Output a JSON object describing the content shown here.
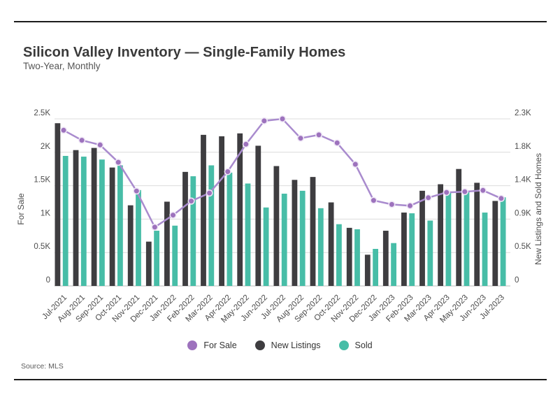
{
  "header": {
    "title": "Silicon Valley Inventory — Single-Family Homes",
    "subtitle": "Two-Year, Monthly"
  },
  "footer": {
    "source": "Source: MLS"
  },
  "legend": [
    {
      "label": "For Sale",
      "color": "#9d72bd"
    },
    {
      "label": "New Listings",
      "color": "#3e3d40"
    },
    {
      "label": "Sold",
      "color": "#47bda7"
    }
  ],
  "colors": {
    "new_listings_bar": "#3e3d40",
    "sold_bar": "#47bda7",
    "for_sale_line": "#a98bce",
    "for_sale_dot": "#9d72bd",
    "dot_ring": "#efe7f6",
    "gridline": "#dcdcdc",
    "baseline": "#bdbdbd",
    "tick_text": "#4d4d4d"
  },
  "chart_data": {
    "type": "bar",
    "subtype": "combo-bar-line-dual-axis",
    "title": "Silicon Valley Inventory — Single-Family Homes",
    "subtitle": "Two-Year, Monthly",
    "grid": true,
    "legend_position": "bottom",
    "categories": [
      "Jul-2021",
      "Aug-2021",
      "Sep-2021",
      "Oct-2021",
      "Nov-2021",
      "Dec-2021",
      "Jan-2022",
      "Feb-2022",
      "Mar-2022",
      "Apr-2022",
      "May-2022",
      "Jun-2022",
      "Jul-2022",
      "Aug-2022",
      "Sep-2022",
      "Oct-2022",
      "Nov-2022",
      "Dec-2022",
      "Jan-2023",
      "Feb-2023",
      "Mar-2023",
      "Apr-2023",
      "May-2023",
      "Jun-2023",
      "Jul-2023"
    ],
    "series": [
      {
        "name": "For Sale",
        "render": "line",
        "axis": "left",
        "values": [
          2330,
          2180,
          2110,
          1850,
          1420,
          880,
          1060,
          1270,
          1390,
          1710,
          2120,
          2470,
          2500,
          2210,
          2260,
          2140,
          1820,
          1280,
          1220,
          1200,
          1320,
          1400,
          1410,
          1430,
          1310
        ]
      },
      {
        "name": "New Listings",
        "render": "bar",
        "axis": "right",
        "values": [
          2240,
          1870,
          1900,
          1630,
          1110,
          610,
          1160,
          1570,
          2080,
          2060,
          2100,
          1930,
          1650,
          1460,
          1500,
          1150,
          800,
          430,
          760,
          1010,
          1310,
          1400,
          1610,
          1420,
          1170
        ]
      },
      {
        "name": "Sold",
        "render": "bar",
        "axis": "right",
        "values": [
          1790,
          1780,
          1740,
          1660,
          1320,
          760,
          830,
          1510,
          1660,
          1560,
          1410,
          1080,
          1270,
          1310,
          1070,
          850,
          780,
          510,
          590,
          1000,
          900,
          1290,
          1300,
          1010,
          1220
        ]
      }
    ],
    "left_axis": {
      "title": "For Sale",
      "min": 0,
      "max": 2500,
      "tick_values": [
        0,
        500,
        1000,
        1500,
        2000,
        2500
      ],
      "tick_labels": [
        "0",
        "0.5K",
        "1K",
        "1.5K",
        "2K",
        "2.5K"
      ]
    },
    "right_axis": {
      "title": "New Listings and Sold Homes",
      "min": 0,
      "max": 2300,
      "tick_values": [
        0,
        460,
        920,
        1380,
        1840,
        2300
      ],
      "tick_labels": [
        "0",
        "0.5K",
        "0.9K",
        "1.4K",
        "1.8K",
        "2.3K"
      ]
    }
  }
}
